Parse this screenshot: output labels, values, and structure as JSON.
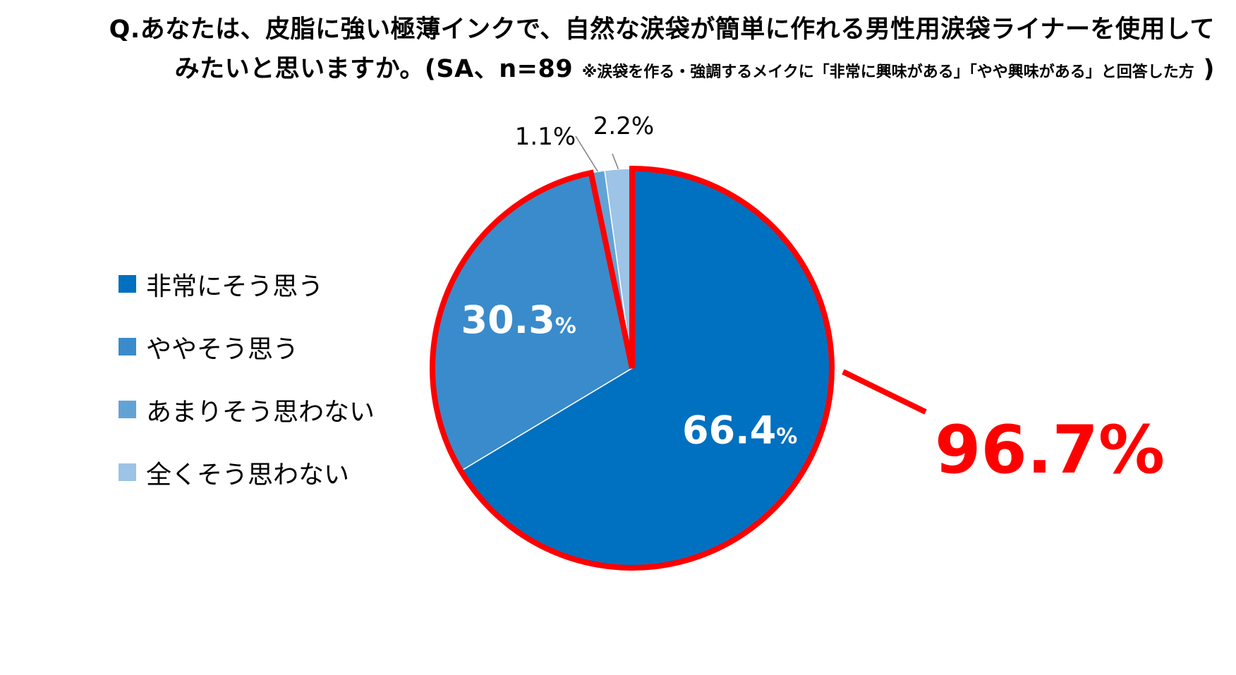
{
  "title": {
    "line1": "Q.あなたは、皮脂に強い極薄インクで、自然な涙袋が簡単に作れる男性用涙袋ライナーを使用して",
    "line2_main": "みたいと思いますか。(SA、n=89",
    "line2_note": "※涙袋を作る・強調するメイクに「非常に興味がある」「やや興味がある」と回答した方",
    "line2_close": ")"
  },
  "highlight": {
    "label": "96.7%",
    "color": "#ff0000"
  },
  "chart_data": {
    "type": "pie",
    "start": "top",
    "direction": "clockwise",
    "slices": [
      {
        "name": "非常にそう思う",
        "value": 66.4,
        "value_label": "66.4",
        "unit_label": "%",
        "color": "#0070c0"
      },
      {
        "name": "ややそう思う",
        "value": 30.3,
        "value_label": "30.3",
        "unit_label": "%",
        "color": "#3a8bcb"
      },
      {
        "name": "あまりそう思わない",
        "value": 1.1,
        "value_label": "1.1%",
        "unit_label": "",
        "color": "#62a3d6"
      },
      {
        "name": "全くそう思わない",
        "value": 2.2,
        "value_label": "2.2%",
        "unit_label": "",
        "color": "#9dc3e6"
      }
    ],
    "legend_position": "left"
  }
}
